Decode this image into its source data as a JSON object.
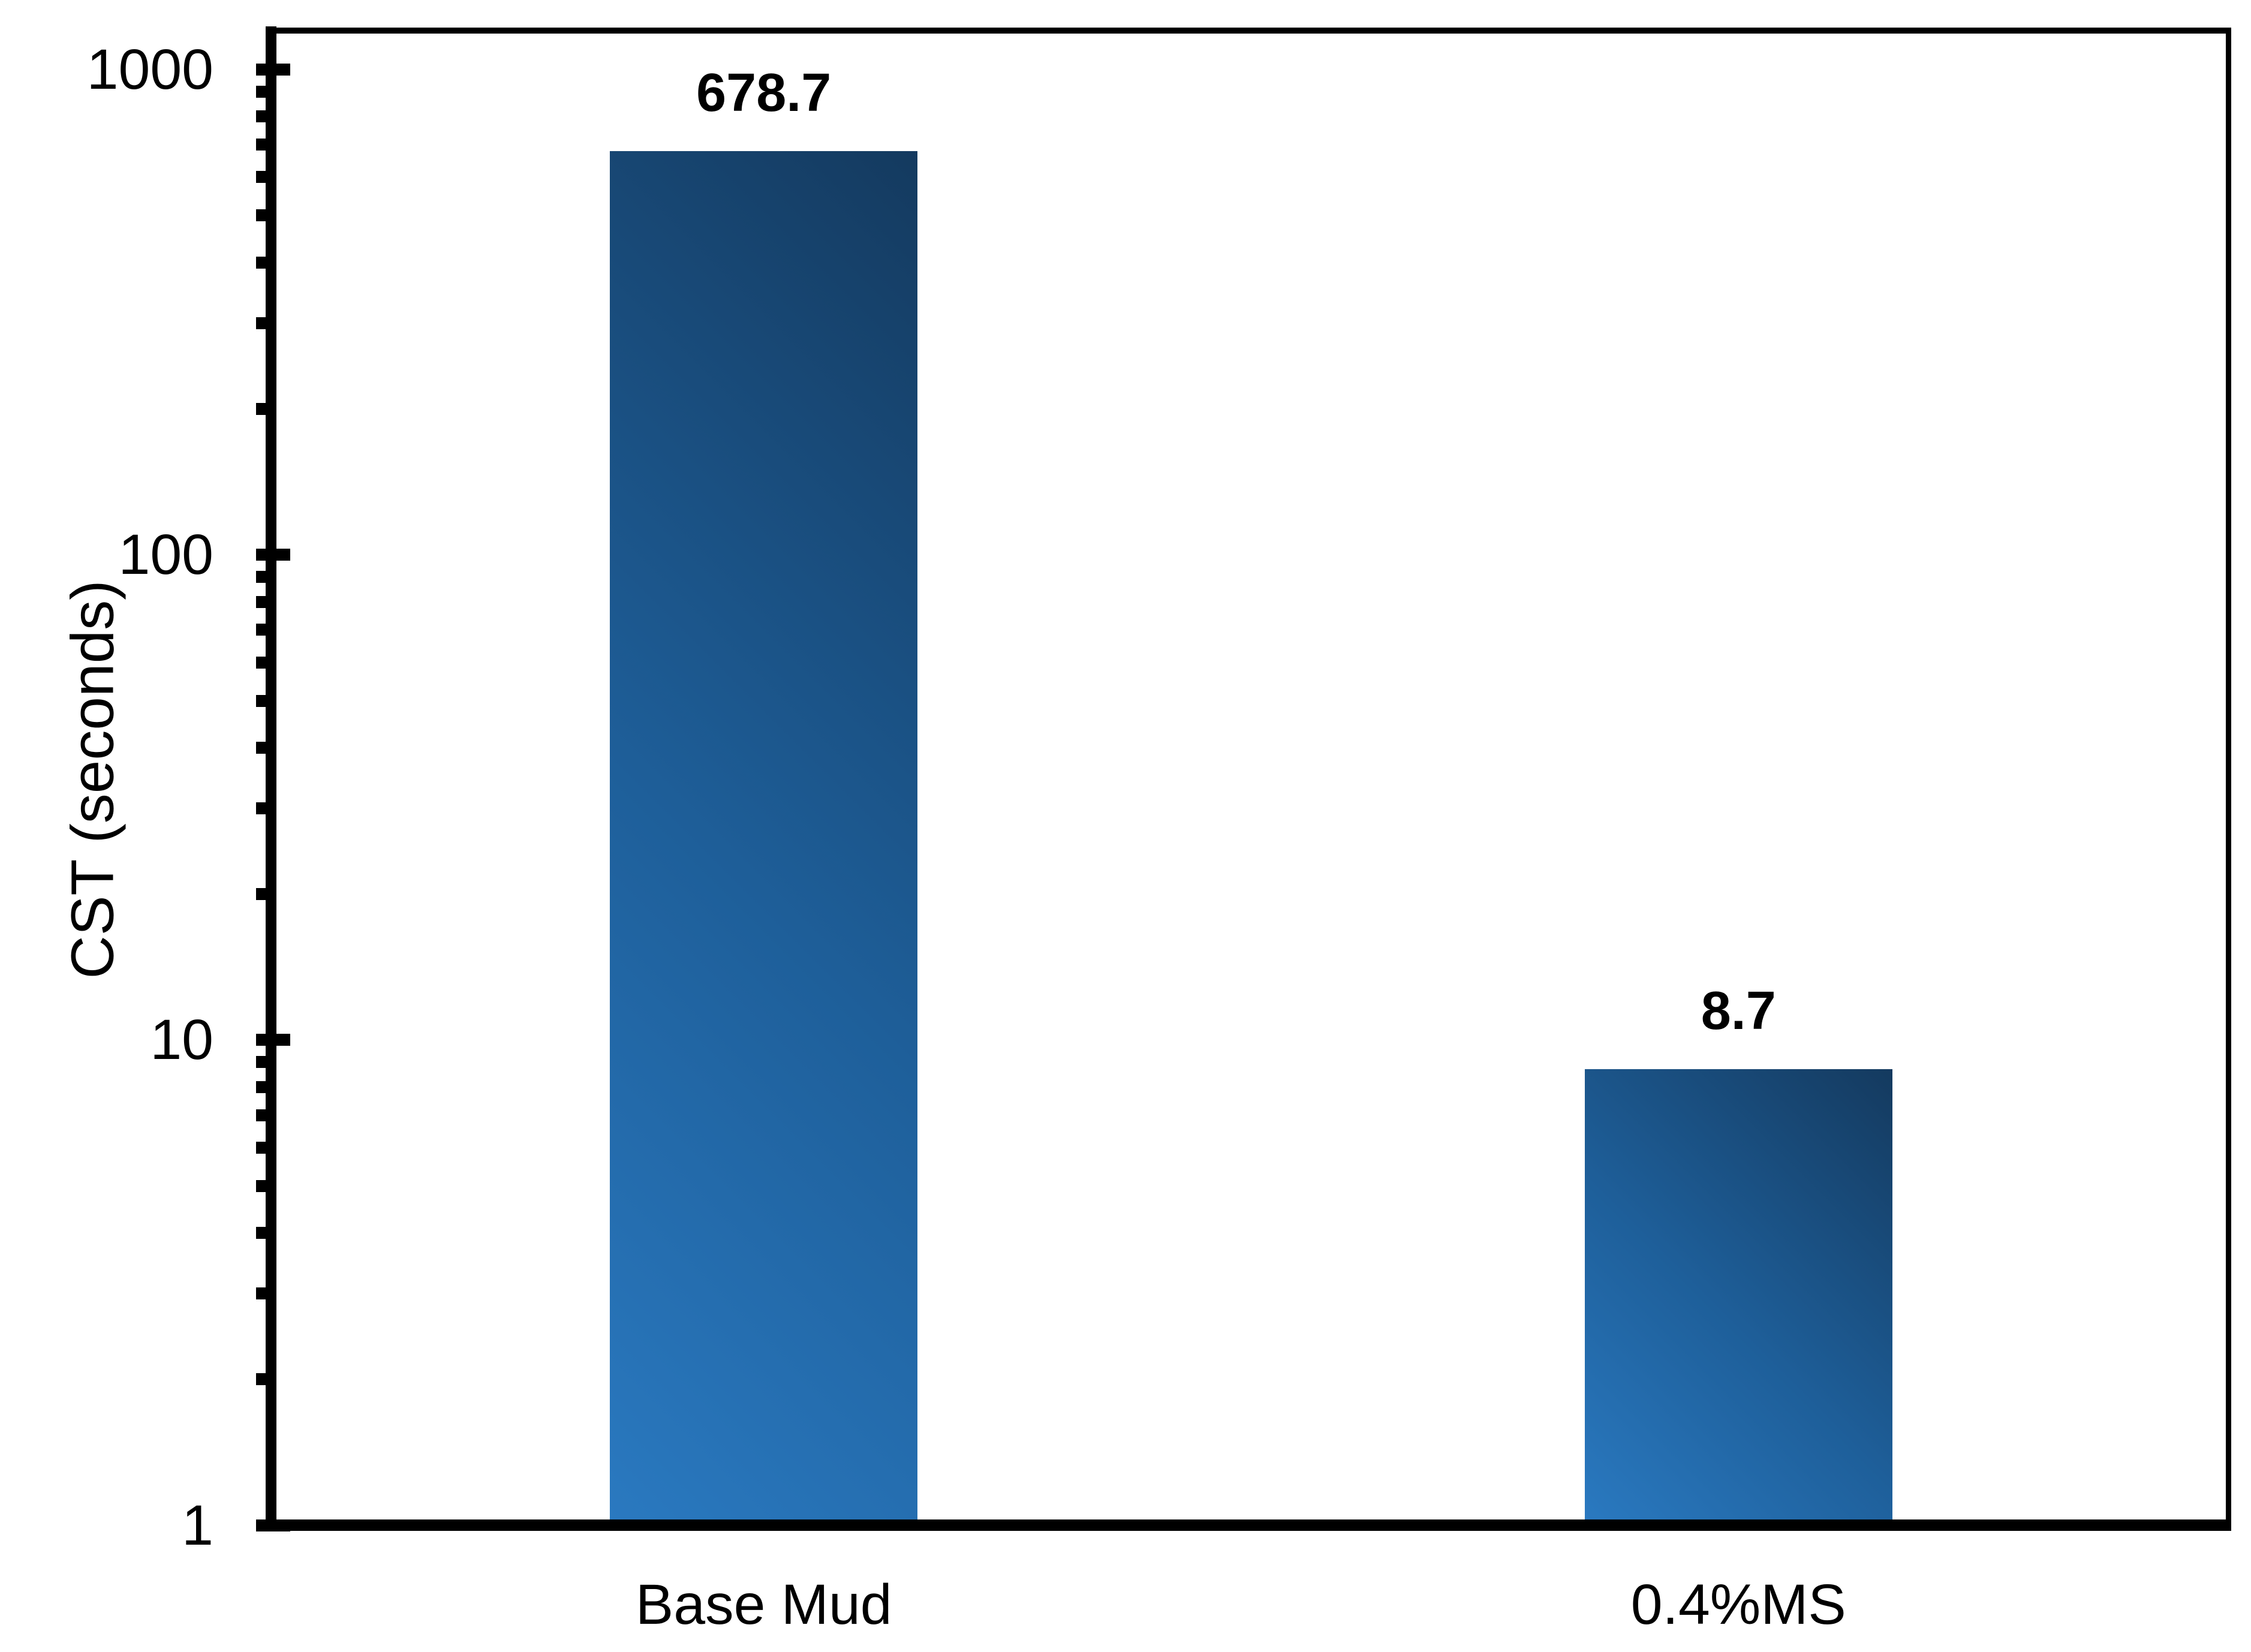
{
  "chart_data": {
    "type": "bar",
    "title": "",
    "categories": [
      "Base Mud",
      "0.4%MS"
    ],
    "values": [
      678.7,
      8.7
    ],
    "value_labels": [
      "678.7",
      "8.7"
    ],
    "xlabel": "",
    "ylabel": "CST (seconds)",
    "y_scale": "log10",
    "ylim": [
      1,
      1200
    ],
    "y_major_ticks": [
      1,
      10,
      100,
      1000
    ],
    "y_tick_labels": [
      "1",
      "10",
      "100",
      "1000"
    ],
    "y_minor_tick_pattern": [
      2,
      3,
      4,
      5,
      6,
      7,
      8,
      9
    ],
    "grid": false,
    "legend": false,
    "bar_gradient_light": "#2A79C0",
    "bar_gradient_dark": "#143A5F",
    "axis_color": "#000000",
    "text_color": "#000000",
    "background": "#FFFFFF"
  }
}
